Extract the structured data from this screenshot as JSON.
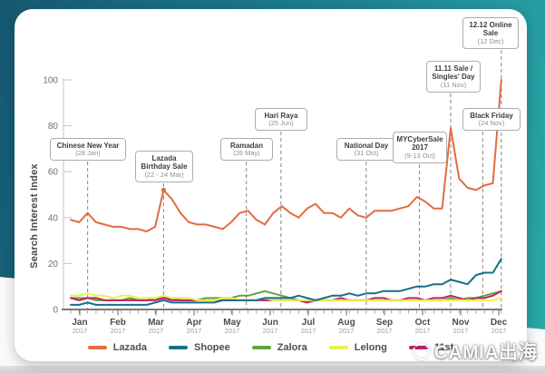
{
  "watermark": {
    "text": "CAMIA出海"
  },
  "chart_data": {
    "type": "line",
    "title": "",
    "ylabel": "Search Interest Index",
    "xlabel": "",
    "ylim": [
      0,
      100
    ],
    "yticks": [
      0,
      20,
      40,
      60,
      80,
      100
    ],
    "frequency": "weekly",
    "grid": false,
    "legend_position": "bottom",
    "months": [
      {
        "label": "Jan",
        "year": "2017"
      },
      {
        "label": "Feb",
        "year": "2017"
      },
      {
        "label": "Mar",
        "year": "2017"
      },
      {
        "label": "Apr",
        "year": "2017"
      },
      {
        "label": "May",
        "year": "2017"
      },
      {
        "label": "Jun",
        "year": "2017"
      },
      {
        "label": "Jul",
        "year": "2017"
      },
      {
        "label": "Aug",
        "year": "2017"
      },
      {
        "label": "Sep",
        "year": "2017"
      },
      {
        "label": "Oct",
        "year": "2017"
      },
      {
        "label": "Nov",
        "year": "2017"
      },
      {
        "label": "Dec",
        "year": "2017"
      }
    ],
    "series": [
      {
        "name": "Lazada",
        "color": "#E36C42",
        "values": [
          39,
          38,
          42,
          38,
          37,
          36,
          36,
          35,
          35,
          34,
          36,
          52,
          48,
          42,
          38,
          37,
          37,
          36,
          35,
          38,
          42,
          43,
          39,
          37,
          42,
          45,
          42,
          40,
          44,
          46,
          42,
          42,
          40,
          44,
          41,
          40,
          43,
          43,
          43,
          44,
          45,
          49,
          47,
          44,
          44,
          79,
          57,
          53,
          52,
          54,
          55,
          100
        ]
      },
      {
        "name": "Shopee",
        "color": "#186E8C",
        "values": [
          2,
          2,
          3,
          2,
          2,
          2,
          2,
          2,
          2,
          2,
          3,
          4,
          3,
          3,
          3,
          3,
          3,
          3,
          4,
          4,
          4,
          4,
          4,
          5,
          5,
          5,
          5,
          6,
          5,
          4,
          5,
          6,
          6,
          7,
          6,
          7,
          7,
          8,
          8,
          8,
          9,
          10,
          10,
          11,
          11,
          13,
          12,
          11,
          15,
          16,
          16,
          22
        ]
      },
      {
        "name": "Zalora",
        "color": "#60A43B",
        "values": [
          5,
          5,
          5,
          4,
          4,
          4,
          4,
          5,
          4,
          4,
          5,
          5,
          5,
          4,
          4,
          4,
          5,
          5,
          5,
          5,
          6,
          6,
          7,
          8,
          7,
          6,
          5,
          4,
          4,
          4,
          4,
          4,
          4,
          4,
          4,
          4,
          4,
          4,
          4,
          4,
          4,
          4,
          4,
          4,
          4,
          5,
          4,
          5,
          5,
          6,
          7,
          8
        ]
      },
      {
        "name": "Lelong",
        "color": "#EDF04F",
        "values": [
          6,
          6,
          7,
          6,
          6,
          5,
          6,
          6,
          5,
          5,
          5,
          6,
          5,
          5,
          5,
          4,
          4,
          4,
          5,
          5,
          4,
          4,
          4,
          5,
          4,
          4,
          4,
          4,
          4,
          4,
          4,
          4,
          4,
          4,
          4,
          4,
          4,
          4,
          4,
          4,
          4,
          4,
          4,
          4,
          4,
          4,
          4,
          4,
          4,
          4,
          4,
          5
        ]
      },
      {
        "name": "11st",
        "color": "#C12069",
        "values": [
          5,
          4,
          5,
          5,
          4,
          4,
          4,
          4,
          4,
          4,
          4,
          5,
          4,
          4,
          4,
          4,
          4,
          4,
          4,
          4,
          4,
          4,
          4,
          4,
          4,
          4,
          4,
          4,
          3,
          4,
          4,
          4,
          5,
          4,
          4,
          4,
          5,
          5,
          4,
          4,
          5,
          5,
          4,
          5,
          5,
          6,
          5,
          4,
          5,
          5,
          6,
          8
        ]
      }
    ],
    "annotations": [
      {
        "title": "Chinese New Year",
        "date": "(28 Jan)",
        "week": 2
      },
      {
        "title": "Lazada Birthday Sale",
        "date": "(22 - 24 Mar)",
        "week": 11,
        "peak_marker": true
      },
      {
        "title": "Ramadan",
        "date": "(26 May)",
        "week": 20.8
      },
      {
        "title": "Hari Raya",
        "date": "(25 Jun)",
        "week": 24.9
      },
      {
        "title": "National Day",
        "date": "(31 Oct)",
        "week": 35
      },
      {
        "title": "MYCyberSale 2017",
        "date": "(9-13 Oct)",
        "week": 41.3
      },
      {
        "title": "11.11 Sale / Singles' Day",
        "date": "(11 Nov)",
        "week": 45
      },
      {
        "title": "Black Friday",
        "date": "(24 Nov)",
        "week": 48.8
      },
      {
        "title": "12.12 Online Sale",
        "date": "(12 Dec)",
        "week": 51
      }
    ]
  }
}
